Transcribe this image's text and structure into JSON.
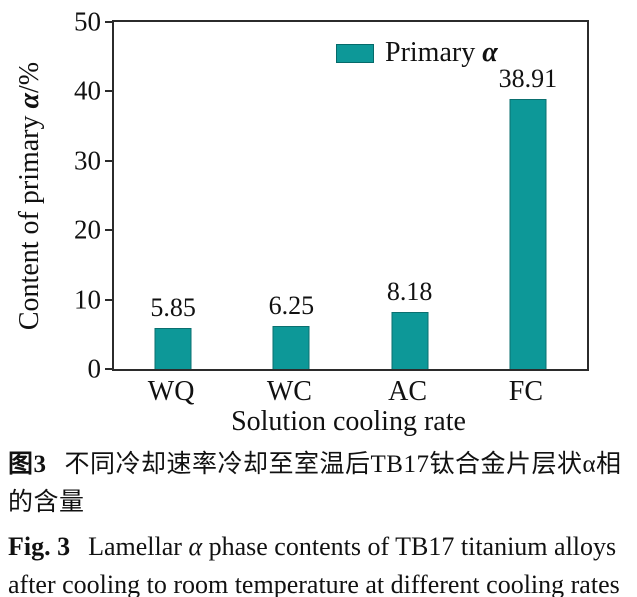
{
  "chart_data": {
    "type": "bar",
    "title": "",
    "categories": [
      "WQ",
      "WC",
      "AC",
      "FC"
    ],
    "values": [
      5.85,
      6.25,
      8.18,
      38.91
    ],
    "xlabel": "Solution cooling rate",
    "ylabel": "Content of primary α/%",
    "ylabel_pre": "Content of primary ",
    "ylabel_alpha": "α",
    "ylabel_post": "/%",
    "ylim": [
      0,
      50
    ],
    "yticks": [
      0,
      10,
      20,
      30,
      40,
      50
    ],
    "grid": false,
    "legend": {
      "label": "Primary α",
      "pre": "Primary ",
      "alpha": "α",
      "position": "top-center-right"
    },
    "bar_color": "#0D9898",
    "bar_border_color": "#0A6F6F",
    "axis_color": "#2B2B2B"
  },
  "captions": {
    "cn_label": "图3",
    "cn_text": "不同冷却速率冷却至室温后TB17钛合金片层状α相的含量",
    "en_label": "Fig. 3",
    "en_pre": "Lamellar ",
    "en_alpha": "α",
    "en_post": " phase contents of TB17 titanium alloys after cooling to room temperature at different cooling rates"
  }
}
